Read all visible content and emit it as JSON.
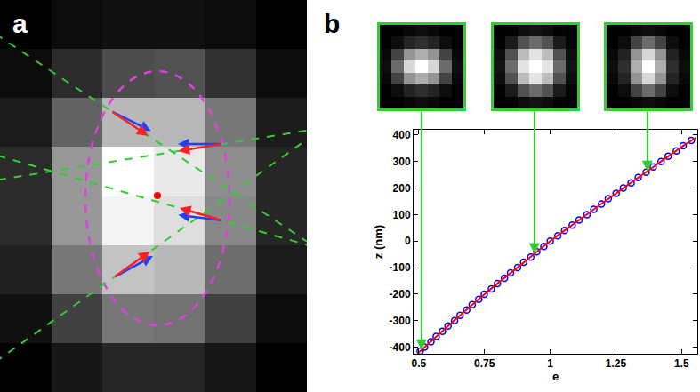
{
  "chart_data": [
    {
      "type": "heatmap",
      "title": "a",
      "tick_labels": false,
      "cells": [
        [
          20,
          30,
          35,
          35,
          30,
          20
        ],
        [
          30,
          60,
          90,
          95,
          65,
          30
        ],
        [
          45,
          110,
          190,
          190,
          130,
          45
        ],
        [
          60,
          160,
          255,
          235,
          150,
          55
        ],
        [
          60,
          160,
          245,
          225,
          145,
          55
        ],
        [
          50,
          130,
          200,
          190,
          120,
          45
        ],
        [
          35,
          80,
          130,
          125,
          80,
          30
        ],
        [
          20,
          40,
          55,
          55,
          40,
          20
        ]
      ]
    },
    {
      "type": "heatmap",
      "tick_labels": false,
      "cells": [
        [
          5,
          5,
          8,
          10,
          8,
          5,
          5
        ],
        [
          5,
          10,
          18,
          22,
          18,
          10,
          5
        ],
        [
          8,
          30,
          60,
          70,
          60,
          30,
          8
        ],
        [
          10,
          45,
          85,
          100,
          85,
          45,
          10
        ],
        [
          8,
          30,
          60,
          70,
          60,
          30,
          8
        ],
        [
          5,
          10,
          18,
          22,
          18,
          10,
          5
        ],
        [
          5,
          5,
          8,
          10,
          8,
          5,
          5
        ]
      ]
    },
    {
      "type": "heatmap",
      "tick_labels": false,
      "cells": [
        [
          5,
          6,
          10,
          12,
          10,
          6,
          5
        ],
        [
          6,
          15,
          35,
          45,
          35,
          15,
          6
        ],
        [
          10,
          35,
          75,
          90,
          75,
          35,
          10
        ],
        [
          12,
          45,
          90,
          100,
          90,
          45,
          12
        ],
        [
          10,
          35,
          75,
          90,
          75,
          35,
          10
        ],
        [
          6,
          15,
          35,
          45,
          35,
          15,
          6
        ],
        [
          5,
          6,
          10,
          12,
          10,
          6,
          5
        ]
      ]
    },
    {
      "type": "heatmap",
      "tick_labels": false,
      "cells": [
        [
          5,
          5,
          8,
          10,
          8,
          5,
          5
        ],
        [
          5,
          10,
          30,
          45,
          30,
          10,
          5
        ],
        [
          8,
          18,
          60,
          85,
          60,
          18,
          8
        ],
        [
          10,
          22,
          70,
          100,
          70,
          22,
          10
        ],
        [
          8,
          18,
          60,
          85,
          60,
          18,
          8
        ],
        [
          5,
          10,
          30,
          45,
          30,
          10,
          5
        ],
        [
          5,
          5,
          8,
          10,
          8,
          5,
          5
        ]
      ]
    },
    {
      "type": "scatter",
      "title": "b",
      "xlabel": "e",
      "ylabel": "z (nm)",
      "grid": false,
      "xlim": [
        0.48,
        1.56
      ],
      "ylim": [
        -425,
        420
      ],
      "xticks": [
        0.5,
        0.75,
        1,
        1.25,
        1.5
      ],
      "yticks": [
        -400,
        -300,
        -200,
        -100,
        0,
        100,
        200,
        300,
        400
      ],
      "series": [
        {
          "type": "scatter",
          "marker": "circle-open",
          "color": "#0000ff",
          "x": [
            0.505,
            0.522,
            0.546,
            0.566,
            0.59,
            0.611,
            0.636,
            0.657,
            0.682,
            0.703,
            0.728,
            0.749,
            0.776,
            0.799,
            0.826,
            0.849,
            0.876,
            0.899,
            0.926,
            0.949,
            0.976,
            1.0,
            1.029,
            1.055,
            1.084,
            1.11,
            1.14,
            1.166,
            1.195,
            1.221,
            1.251,
            1.278,
            1.308,
            1.335,
            1.365,
            1.392,
            1.422,
            1.449,
            1.48,
            1.506,
            1.537
          ],
          "values": [
            -415,
            -400,
            -380,
            -360,
            -340,
            -320,
            -300,
            -280,
            -260,
            -240,
            -220,
            -200,
            -180,
            -160,
            -140,
            -120,
            -100,
            -80,
            -60,
            -40,
            -20,
            0,
            20,
            40,
            60,
            80,
            100,
            120,
            140,
            160,
            180,
            200,
            220,
            240,
            260,
            280,
            300,
            320,
            340,
            360,
            380
          ]
        },
        {
          "type": "line",
          "line_style": "solid",
          "color": "#ff0000",
          "x": [
            0.5,
            0.6,
            0.75,
            0.9,
            1.0,
            1.1,
            1.25,
            1.4,
            1.5,
            1.555
          ],
          "values": [
            -420,
            -330,
            -200,
            -80,
            0,
            72,
            180,
            285,
            355,
            390
          ]
        }
      ],
      "arrows": [
        {
          "x": 0.51,
          "y": -411
        },
        {
          "x": 0.94,
          "y": -48
        },
        {
          "x": 1.37,
          "y": 263
        }
      ]
    }
  ]
}
